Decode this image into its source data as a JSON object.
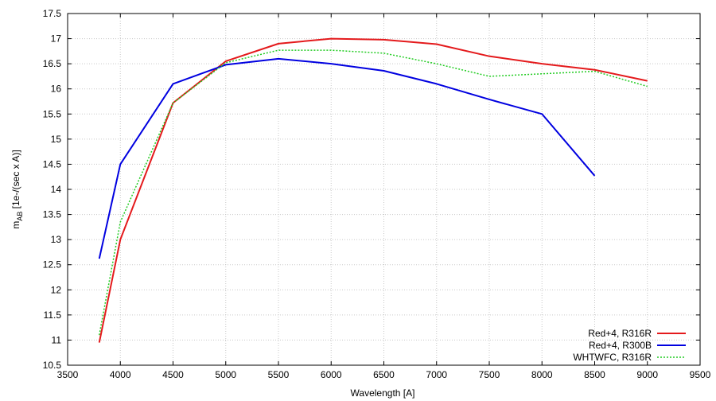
{
  "chart_data": {
    "type": "line",
    "title": "",
    "xlabel": "Wavelength   [A]",
    "ylabel_main": "m",
    "ylabel_sub": "AB",
    "ylabel_rest": " [1e-/(sec x A)]",
    "xlim": [
      3500,
      9500
    ],
    "ylim": [
      10.5,
      17.5
    ],
    "xticks": [
      "3500",
      "4000",
      "4500",
      "5000",
      "5500",
      "6000",
      "6500",
      "7000",
      "7500",
      "8000",
      "8500",
      "9000",
      "9500"
    ],
    "yticks": [
      "10.5",
      "11",
      "11.5",
      "12",
      "12.5",
      "13",
      "13.5",
      "14",
      "14.5",
      "15",
      "15.5",
      "16",
      "16.5",
      "17",
      "17.5"
    ],
    "grid": true,
    "legend_position": "bottom-right",
    "series": [
      {
        "name": "Red+4, R316R",
        "color": "#e41a1c",
        "style": "solid",
        "x": [
          3800,
          4000,
          4500,
          5000,
          5500,
          6000,
          6500,
          7000,
          7500,
          8000,
          8500,
          9000
        ],
        "y": [
          10.95,
          13.0,
          15.72,
          16.55,
          16.9,
          17.0,
          16.98,
          16.89,
          16.65,
          16.5,
          16.38,
          16.16
        ]
      },
      {
        "name": "Red+4, R300B",
        "color": "#0000e0",
        "style": "solid",
        "x": [
          3800,
          4000,
          4500,
          5000,
          5500,
          6000,
          6500,
          7000,
          7500,
          8000,
          8500
        ],
        "y": [
          12.62,
          14.5,
          16.1,
          16.48,
          16.6,
          16.5,
          16.36,
          16.1,
          15.79,
          15.5,
          14.27
        ]
      },
      {
        "name": "WHTWFC, R316R",
        "color": "#22cc22",
        "style": "dotted",
        "x": [
          3800,
          4000,
          4500,
          5000,
          5500,
          6000,
          6500,
          7000,
          7500,
          8000,
          8500,
          9000
        ],
        "y": [
          11.1,
          13.35,
          15.72,
          16.52,
          16.77,
          16.77,
          16.71,
          16.5,
          16.25,
          16.3,
          16.35,
          16.05
        ]
      }
    ]
  }
}
